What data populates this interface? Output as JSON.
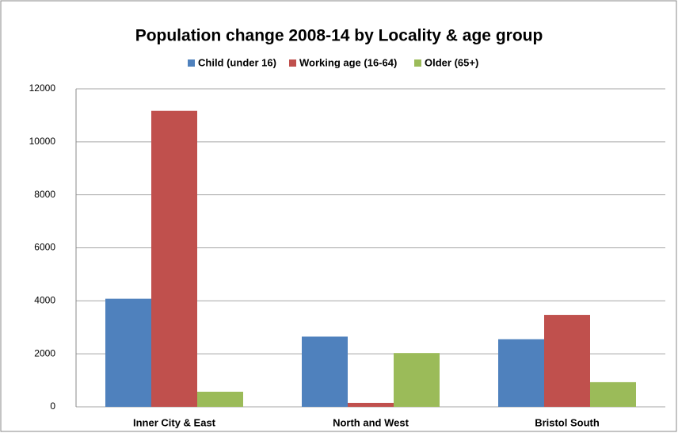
{
  "chart_data": {
    "type": "bar",
    "title": "Population change 2008-14 by Locality & age group",
    "categories": [
      "Inner City & East",
      "North and West",
      "Bristol South"
    ],
    "series": [
      {
        "name": "Child (under 16)",
        "color": "#4f81bd",
        "values": [
          4080,
          2650,
          2550
        ]
      },
      {
        "name": "Working age (16-64)",
        "color": "#c0504d",
        "values": [
          11170,
          150,
          3470
        ]
      },
      {
        "name": "Older (65+)",
        "color": "#9bbb59",
        "values": [
          570,
          2030,
          930
        ]
      }
    ],
    "ylim": [
      0,
      12000
    ],
    "yticks": [
      0,
      2000,
      4000,
      6000,
      8000,
      10000,
      12000
    ],
    "grid": true,
    "legend": "top"
  }
}
